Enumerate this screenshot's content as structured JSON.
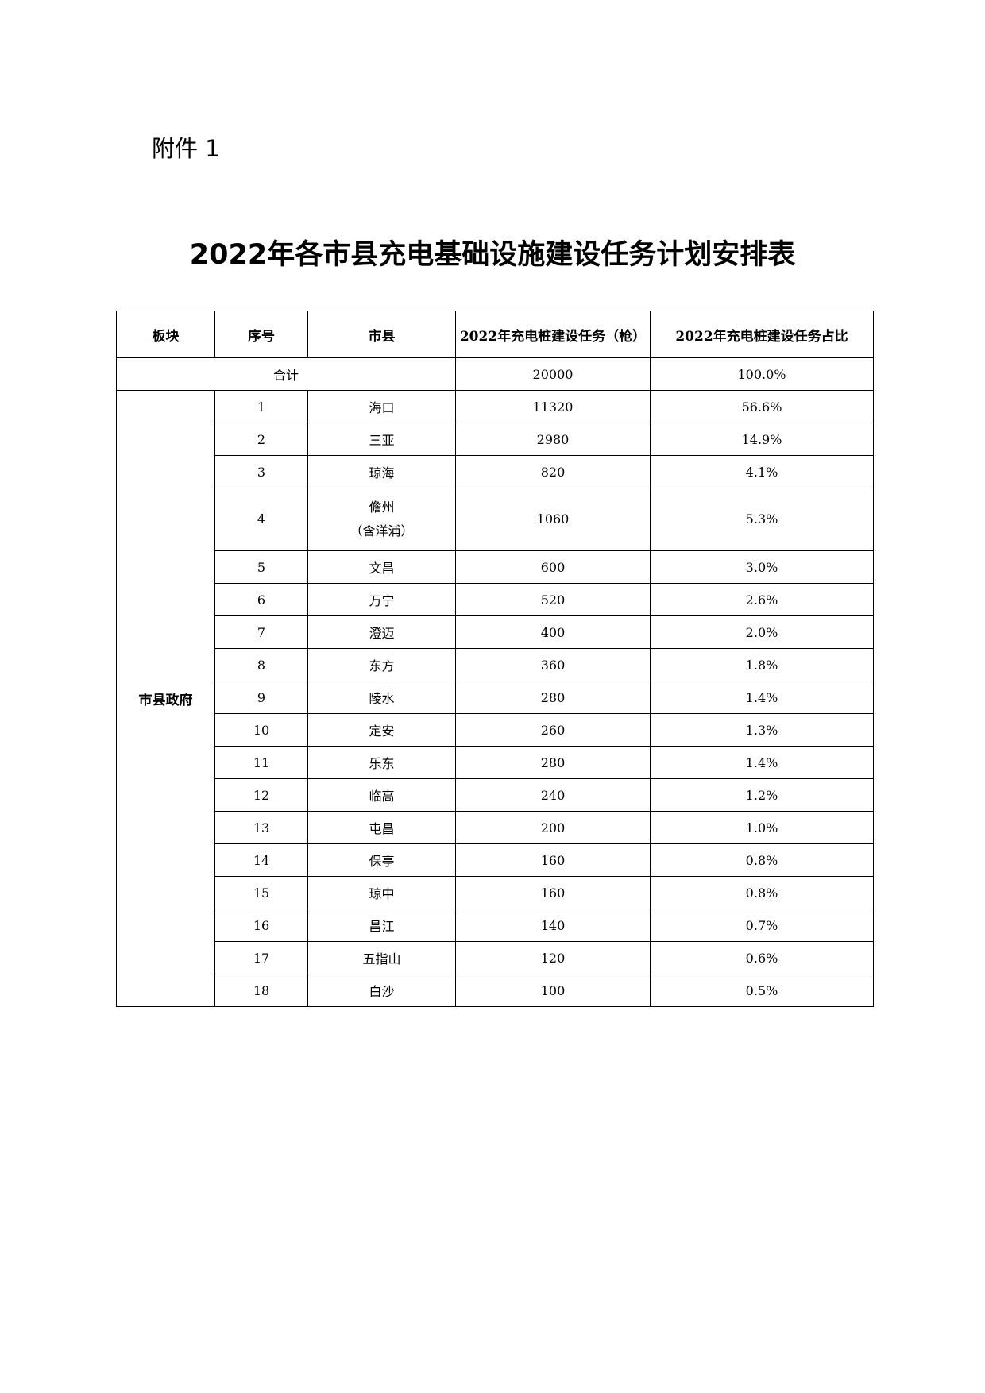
{
  "attachment_label": "附件 1",
  "title": "2022年各市县充电基础设施建设任务计划安排表",
  "table": {
    "headers": [
      "板块",
      "序号",
      "市县",
      "2022年充电桩建设任务（枪）",
      "2022年充电桩建设任务占比"
    ],
    "total": {
      "label": "合计",
      "count": "20000",
      "share": "100.0%"
    },
    "block_label": "市县政府",
    "rows": [
      {
        "no": "1",
        "city": "海口",
        "count": "11320",
        "share": "56.6%"
      },
      {
        "no": "2",
        "city": "三亚",
        "count": "2980",
        "share": "14.9%"
      },
      {
        "no": "3",
        "city": "琼海",
        "count": "820",
        "share": "4.1%"
      },
      {
        "no": "4",
        "city": "儋州",
        "city_note": "（含洋浦）",
        "count": "1060",
        "share": "5.3%"
      },
      {
        "no": "5",
        "city": "文昌",
        "count": "600",
        "share": "3.0%"
      },
      {
        "no": "6",
        "city": "万宁",
        "count": "520",
        "share": "2.6%"
      },
      {
        "no": "7",
        "city": "澄迈",
        "count": "400",
        "share": "2.0%"
      },
      {
        "no": "8",
        "city": "东方",
        "count": "360",
        "share": "1.8%"
      },
      {
        "no": "9",
        "city": "陵水",
        "count": "280",
        "share": "1.4%"
      },
      {
        "no": "10",
        "city": "定安",
        "count": "260",
        "share": "1.3%"
      },
      {
        "no": "11",
        "city": "乐东",
        "count": "280",
        "share": "1.4%"
      },
      {
        "no": "12",
        "city": "临高",
        "count": "240",
        "share": "1.2%"
      },
      {
        "no": "13",
        "city": "屯昌",
        "count": "200",
        "share": "1.0%"
      },
      {
        "no": "14",
        "city": "保亭",
        "count": "160",
        "share": "0.8%"
      },
      {
        "no": "15",
        "city": "琼中",
        "count": "160",
        "share": "0.8%"
      },
      {
        "no": "16",
        "city": "昌江",
        "count": "140",
        "share": "0.7%"
      },
      {
        "no": "17",
        "city": "五指山",
        "count": "120",
        "share": "0.6%"
      },
      {
        "no": "18",
        "city": "白沙",
        "count": "100",
        "share": "0.5%"
      }
    ]
  }
}
